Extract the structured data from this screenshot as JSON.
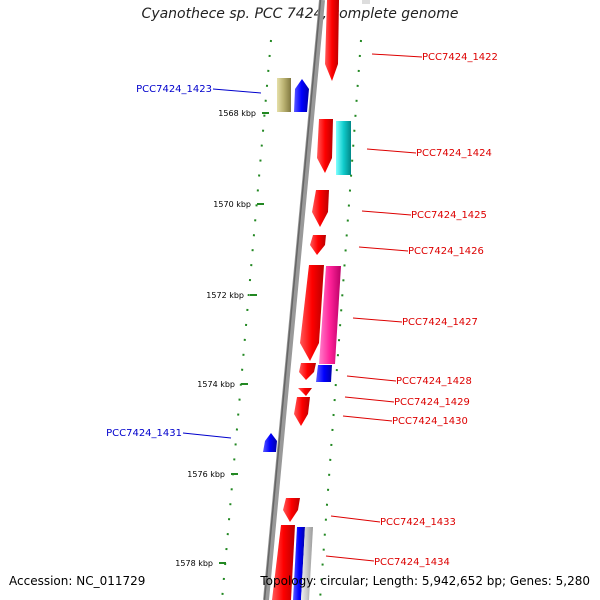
{
  "title": "Cyanothece sp. PCC 7424, complete genome",
  "footer": {
    "accession": "Accession: NC_011729",
    "summary": "Topology: circular; Length: 5,942,652 bp; Genes: 5,280"
  },
  "colors": {
    "forward_label": "#dd0000",
    "reverse_label": "#0000cc",
    "backbone": "#888888",
    "tick": "#228822"
  },
  "ticks": [
    "1568 kbp",
    "1570 kbp",
    "1572 kbp",
    "1574 kbp",
    "1576 kbp",
    "1578 kbp"
  ],
  "gene_labels_left": [
    "PCC7424_1423",
    "PCC7424_1431"
  ],
  "gene_labels_right": [
    "PCC7424_1422",
    "PCC7424_1424",
    "PCC7424_1425",
    "PCC7424_1426",
    "PCC7424_1427",
    "PCC7424_1428",
    "PCC7424_1429",
    "PCC7424_1430",
    "PCC7424_1433",
    "PCC7424_1434"
  ]
}
